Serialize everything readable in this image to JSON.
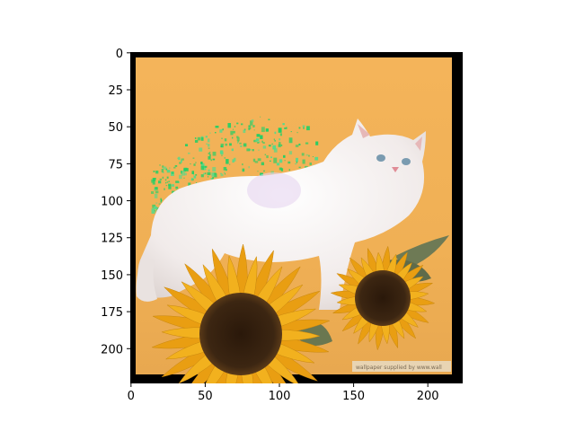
{
  "image": {
    "subject": "white-cat-with-sunflowers-photo",
    "watermark_text": "wallpaper supplied by www.wall"
  },
  "axes": {
    "x_ticks": [
      {
        "value": 0,
        "label": "0"
      },
      {
        "value": 50,
        "label": "50"
      },
      {
        "value": 100,
        "label": "100"
      },
      {
        "value": 150,
        "label": "150"
      },
      {
        "value": 200,
        "label": "200"
      }
    ],
    "y_ticks": [
      {
        "value": 0,
        "label": "0"
      },
      {
        "value": 25,
        "label": "25"
      },
      {
        "value": 50,
        "label": "50"
      },
      {
        "value": 75,
        "label": "75"
      },
      {
        "value": 100,
        "label": "100"
      },
      {
        "value": 125,
        "label": "125"
      },
      {
        "value": 150,
        "label": "150"
      },
      {
        "value": 175,
        "label": "175"
      },
      {
        "value": 200,
        "label": "200"
      }
    ],
    "xlim": [
      -0.5,
      223.5
    ],
    "ylim": [
      223.5,
      -0.5
    ]
  },
  "colors": {
    "background": "#F2B257",
    "frame": "#000000",
    "cat": "#F4EEEC",
    "petal": "#F2B11E",
    "sunflower_center": "#3A2410",
    "green_artifact": "#1FCF66"
  }
}
